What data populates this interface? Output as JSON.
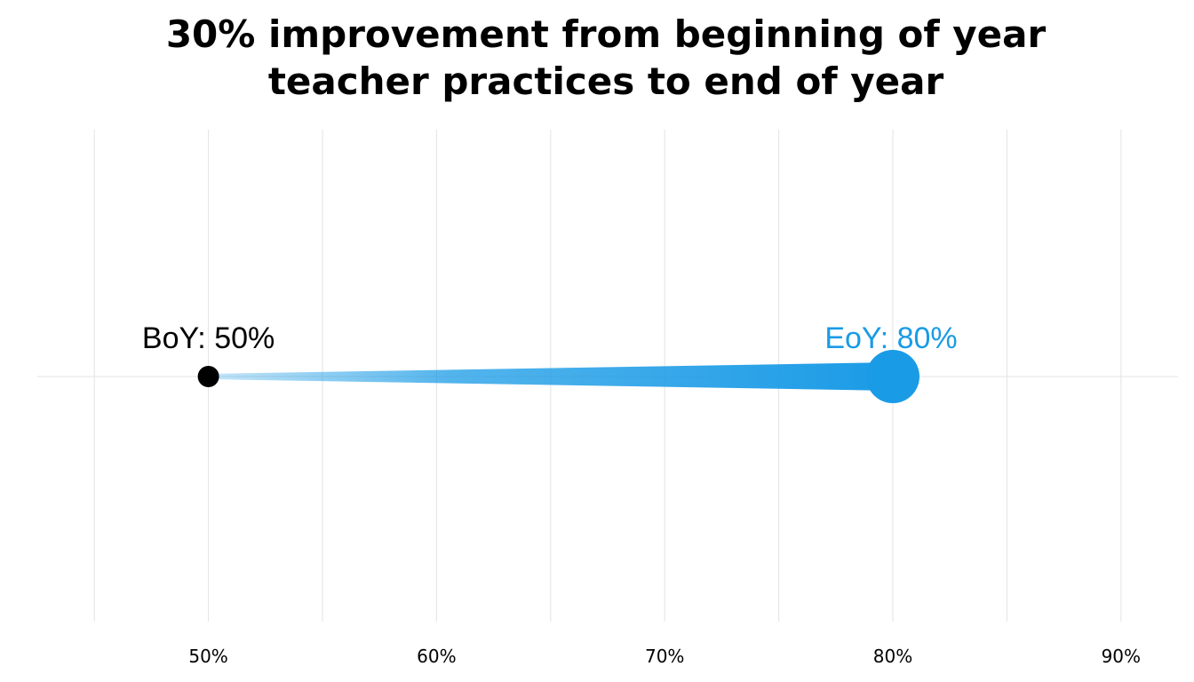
{
  "chart_data": {
    "type": "dumbbell",
    "title_lines": [
      "30% improvement from beginning of year",
      "teacher practices to end of year"
    ],
    "xlim": [
      0.425,
      0.925
    ],
    "x_tick_values": [
      0.5,
      0.6,
      0.7,
      0.8,
      0.9
    ],
    "x_tick_labels": [
      "50%",
      "60%",
      "70%",
      "80%",
      "90%"
    ],
    "minor_grid_values": [
      0.45,
      0.55,
      0.65,
      0.75,
      0.85
    ],
    "grid": true,
    "points": [
      {
        "label": "BoY: 50%",
        "value": 0.5,
        "color": "#000000"
      },
      {
        "label": "EoY: 80%",
        "value": 0.8,
        "color": "#1a9be6"
      }
    ],
    "connector_color": "#1a9be6",
    "grid_color": "#e3e3e3"
  }
}
